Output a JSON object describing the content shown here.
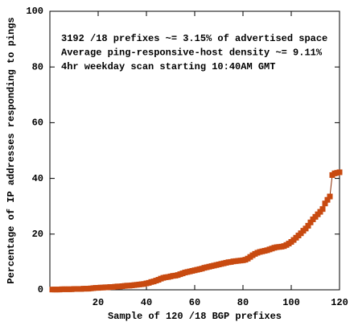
{
  "chart_data": {
    "type": "line",
    "xlabel": "Sample of 120 /18 BGP prefixes",
    "ylabel": "Percentage of IP addresses responding to pings",
    "annotations": [
      "3192 /18 prefixes ~= 3.15% of advertised space",
      "Average ping-responsive-host density ~= 9.11%",
      "4hr weekday scan starting 10:40AM GMT"
    ],
    "x": [
      1,
      2,
      3,
      4,
      5,
      6,
      7,
      8,
      9,
      10,
      11,
      12,
      13,
      14,
      15,
      16,
      17,
      18,
      19,
      20,
      21,
      22,
      23,
      24,
      25,
      26,
      27,
      28,
      29,
      30,
      31,
      32,
      33,
      34,
      35,
      36,
      37,
      38,
      39,
      40,
      41,
      42,
      43,
      44,
      45,
      46,
      47,
      48,
      49,
      50,
      51,
      52,
      53,
      54,
      55,
      56,
      57,
      58,
      59,
      60,
      61,
      62,
      63,
      64,
      65,
      66,
      67,
      68,
      69,
      70,
      71,
      72,
      73,
      74,
      75,
      76,
      77,
      78,
      79,
      80,
      81,
      82,
      83,
      84,
      85,
      86,
      87,
      88,
      89,
      90,
      91,
      92,
      93,
      94,
      95,
      96,
      97,
      98,
      99,
      100,
      101,
      102,
      103,
      104,
      105,
      106,
      107,
      108,
      109,
      110,
      111,
      112,
      113,
      114,
      115,
      116,
      117,
      118,
      119,
      120
    ],
    "values": [
      0.1,
      0.1,
      0.1,
      0.1,
      0.2,
      0.2,
      0.2,
      0.2,
      0.2,
      0.3,
      0.3,
      0.3,
      0.3,
      0.4,
      0.4,
      0.4,
      0.5,
      0.6,
      0.7,
      0.7,
      0.8,
      0.8,
      0.9,
      0.9,
      1.0,
      1.0,
      1.1,
      1.2,
      1.2,
      1.3,
      1.4,
      1.5,
      1.5,
      1.6,
      1.7,
      1.8,
      1.9,
      2.0,
      2.1,
      2.3,
      2.5,
      2.8,
      3.0,
      3.3,
      3.6,
      4.0,
      4.3,
      4.5,
      4.6,
      4.8,
      5.0,
      5.1,
      5.3,
      5.6,
      5.9,
      6.2,
      6.4,
      6.6,
      6.8,
      7.0,
      7.2,
      7.4,
      7.6,
      7.9,
      8.1,
      8.3,
      8.5,
      8.7,
      8.9,
      9.1,
      9.3,
      9.5,
      9.7,
      9.9,
      10.0,
      10.2,
      10.3,
      10.4,
      10.5,
      10.6,
      10.8,
      11.2,
      11.8,
      12.4,
      12.9,
      13.3,
      13.6,
      13.8,
      14.0,
      14.2,
      14.5,
      14.8,
      15.1,
      15.3,
      15.4,
      15.5,
      15.7,
      16.1,
      16.6,
      17.2,
      17.9,
      18.7,
      19.5,
      20.3,
      21.2,
      22.0,
      23.0,
      24.2,
      25.3,
      26.2,
      27.1,
      28.0,
      29.0,
      31.0,
      32.3,
      33.5,
      41.2,
      41.8,
      42.0,
      42.2
    ],
    "color": "#c84a10",
    "line_color": "#8b2a00",
    "xlim": [
      0,
      120
    ],
    "xticks": [
      20,
      40,
      60,
      80,
      100,
      120
    ],
    "ylim": [
      0,
      100
    ],
    "yticks": [
      0,
      20,
      40,
      60,
      80,
      100
    ],
    "grid": false
  }
}
